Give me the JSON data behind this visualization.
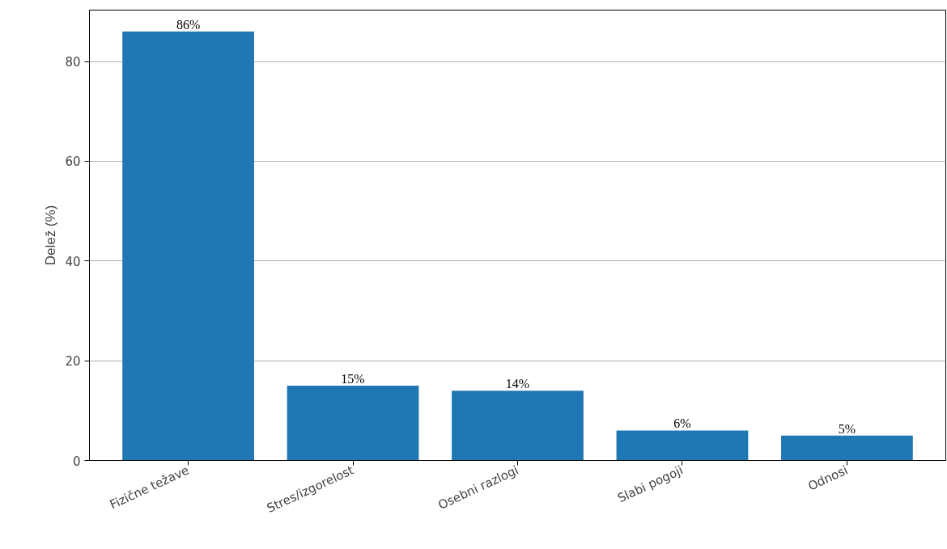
{
  "chart_data": {
    "type": "bar",
    "ylabel": "Delež (%)",
    "categories": [
      "Fizične težave",
      "Stres/izgorelost",
      "Osebni razlogi",
      "Slabi pogoji",
      "Odnosi"
    ],
    "values": [
      86,
      15,
      14,
      6,
      5
    ],
    "value_labels": [
      "86%",
      "15%",
      "14%",
      "6%",
      "5%"
    ],
    "color": "#1f77b4",
    "ylim": [
      0,
      90.3
    ],
    "yticks": [
      0,
      20,
      40,
      60,
      80
    ],
    "grid": "y"
  }
}
